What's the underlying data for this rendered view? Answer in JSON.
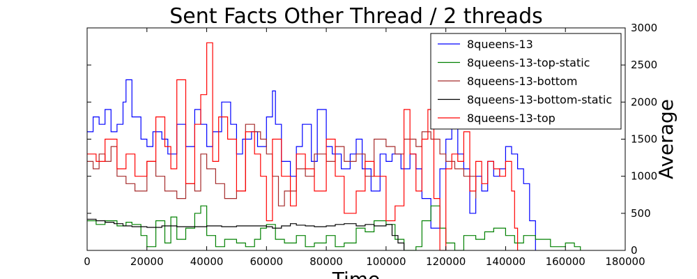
{
  "chart_data": {
    "type": "line",
    "title": "Sent Facts Other Thread / 2 threads",
    "xlabel": "Time",
    "ylabel": "Average",
    "xlim": [
      0,
      180000
    ],
    "ylim": [
      0,
      3000
    ],
    "x_ticks": [
      0,
      20000,
      40000,
      60000,
      80000,
      100000,
      120000,
      140000,
      160000,
      180000
    ],
    "y_ticks": [
      0,
      500,
      1000,
      1500,
      2000,
      2500,
      3000
    ],
    "y_axis_side": "right",
    "grid": false,
    "legend_position": "top-right",
    "series": [
      {
        "name": "8queens-13",
        "color": "#0000ff",
        "x": [
          0,
          2000,
          4000,
          6000,
          8000,
          10000,
          12000,
          13000,
          15000,
          18000,
          20000,
          22000,
          25000,
          27000,
          30000,
          33000,
          36000,
          38000,
          40000,
          42000,
          45000,
          48000,
          50000,
          52000,
          55000,
          57000,
          60000,
          62000,
          63000,
          65000,
          68000,
          70000,
          72000,
          75000,
          77000,
          80000,
          82000,
          85000,
          88000,
          90000,
          92000,
          95000,
          98000,
          100000,
          102000,
          105000,
          108000,
          110000,
          112000,
          115000,
          118000,
          120000,
          122000,
          124000,
          126000,
          128000,
          130000,
          132000,
          134000,
          136000,
          138000,
          140000,
          142000,
          144000,
          146000,
          148000,
          150000
        ],
        "y": [
          1600,
          1800,
          1700,
          1900,
          1600,
          1700,
          2000,
          2300,
          1800,
          1500,
          1400,
          1600,
          1500,
          1300,
          1700,
          1400,
          1900,
          1700,
          1400,
          1600,
          2000,
          1700,
          1300,
          1500,
          1600,
          1400,
          1800,
          2150,
          1700,
          1200,
          1000,
          1400,
          1700,
          1200,
          1900,
          1400,
          1300,
          1100,
          1300,
          1500,
          1100,
          800,
          1300,
          1200,
          1300,
          1100,
          1300,
          1100,
          700,
          300,
          1100,
          1500,
          1800,
          1300,
          1100,
          500,
          1000,
          800,
          1200,
          1000,
          1100,
          1400,
          1300,
          1100,
          900,
          400,
          0
        ]
      },
      {
        "name": "8queens-13-top-static",
        "color": "#008000",
        "x": [
          0,
          3000,
          6000,
          10000,
          13000,
          15000,
          18000,
          20000,
          23000,
          26000,
          28000,
          30000,
          33000,
          36000,
          38000,
          40000,
          43000,
          46000,
          50000,
          53000,
          56000,
          58000,
          60000,
          63000,
          66000,
          70000,
          73000,
          76000,
          80000,
          83000,
          86000,
          90000,
          93000,
          96000,
          100000,
          103000,
          106000,
          110000,
          112000,
          115000,
          118000,
          120000,
          123000,
          126000,
          130000,
          133000,
          136000,
          140000,
          143000,
          146000,
          150000,
          155000,
          160000,
          163000,
          165000
        ],
        "y": [
          400,
          350,
          400,
          330,
          380,
          350,
          200,
          50,
          400,
          100,
          450,
          150,
          300,
          500,
          600,
          200,
          50,
          150,
          100,
          50,
          150,
          300,
          350,
          150,
          100,
          200,
          50,
          100,
          200,
          50,
          100,
          300,
          250,
          400,
          350,
          150,
          0,
          50,
          400,
          600,
          300,
          100,
          0,
          200,
          150,
          250,
          300,
          200,
          100,
          200,
          150,
          50,
          100,
          50,
          0
        ]
      },
      {
        "name": "8queens-13-bottom",
        "color": "#a52a2a",
        "x": [
          0,
          2000,
          4000,
          6000,
          8000,
          10000,
          13000,
          16000,
          20000,
          23000,
          26000,
          30000,
          33000,
          36000,
          38000,
          40000,
          43000,
          46000,
          50000,
          53000,
          56000,
          58000,
          60000,
          62000,
          64000,
          66000,
          70000,
          73000,
          76000,
          80000,
          83000,
          86000,
          90000,
          93000,
          96000,
          100000,
          103000,
          106000,
          110000,
          112000,
          115000,
          118000,
          120000,
          123000,
          126000,
          130000
        ],
        "y": [
          1200,
          1100,
          1300,
          1200,
          1400,
          1000,
          900,
          800,
          1200,
          1000,
          800,
          700,
          900,
          800,
          1300,
          1100,
          900,
          700,
          800,
          1700,
          1600,
          1500,
          1300,
          1000,
          600,
          800,
          1100,
          1000,
          1300,
          1200,
          1400,
          1200,
          1300,
          1000,
          1500,
          1400,
          1300,
          1500,
          1400,
          1600,
          1500,
          1300,
          1200,
          1100,
          1000,
          700
        ]
      },
      {
        "name": "8queens-13-bottom-static",
        "color": "#000000",
        "x": [
          0,
          3000,
          6000,
          9000,
          12000,
          15000,
          20000,
          25000,
          30000,
          35000,
          40000,
          45000,
          50000,
          55000,
          60000,
          62000,
          65000,
          68000,
          70000,
          73000,
          76000,
          80000,
          83000,
          86000,
          90000,
          93000,
          96000,
          100000,
          102000,
          104000,
          106000
        ],
        "y": [
          420,
          400,
          380,
          360,
          330,
          320,
          310,
          330,
          320,
          320,
          330,
          320,
          330,
          330,
          320,
          300,
          330,
          360,
          340,
          330,
          320,
          330,
          350,
          360,
          330,
          350,
          330,
          350,
          200,
          100,
          0
        ]
      },
      {
        "name": "8queens-13-top",
        "color": "#ff0000",
        "x": [
          0,
          3000,
          6000,
          10000,
          13000,
          16000,
          20000,
          23000,
          26000,
          28000,
          30000,
          33000,
          36000,
          38000,
          40000,
          42000,
          44000,
          47000,
          50000,
          53000,
          56000,
          58000,
          60000,
          62000,
          65000,
          68000,
          70000,
          73000,
          76000,
          80000,
          83000,
          86000,
          90000,
          93000,
          96000,
          100000,
          103000,
          106000,
          108000,
          110000,
          112000,
          114000,
          116000,
          118000,
          120000,
          122000,
          124000,
          126000,
          128000,
          130000,
          132000,
          134000,
          136000,
          138000,
          140000,
          142000,
          143000,
          144000
        ],
        "y": [
          1300,
          1200,
          1500,
          1100,
          1300,
          1000,
          1200,
          1800,
          1400,
          1100,
          2300,
          900,
          1700,
          2100,
          2800,
          1200,
          1800,
          1500,
          800,
          1600,
          1300,
          1000,
          400,
          1500,
          1000,
          600,
          1300,
          1100,
          800,
          1500,
          1000,
          500,
          800,
          1200,
          1000,
          400,
          600,
          1900,
          1300,
          800,
          1500,
          1900,
          700,
          0,
          1100,
          1300,
          1200,
          1600,
          800,
          1200,
          900,
          1200,
          1100,
          1000,
          1200,
          800,
          300,
          0
        ]
      }
    ]
  }
}
